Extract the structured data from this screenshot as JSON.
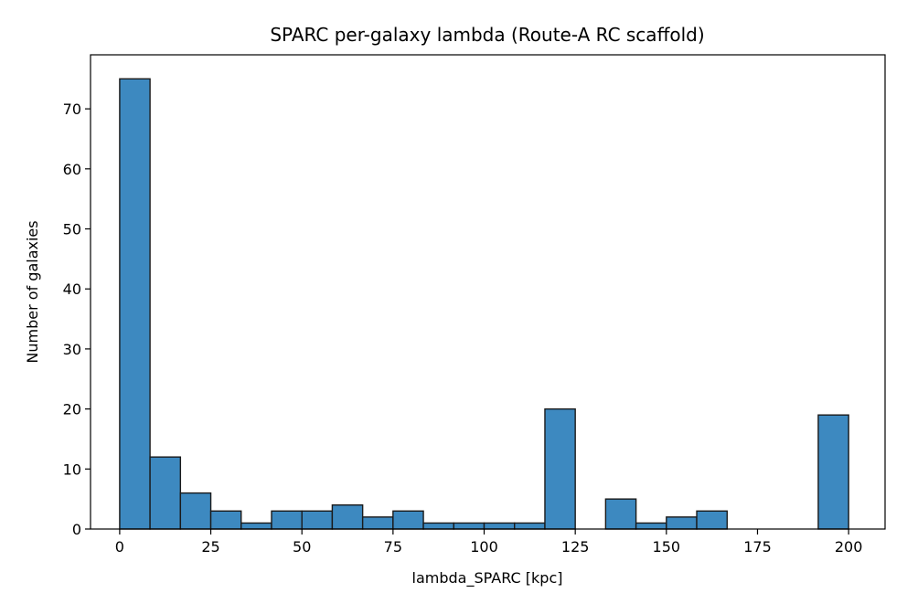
{
  "chart_data": {
    "type": "bar",
    "title": "SPARC per-galaxy lambda (Route-A RC scaffold)",
    "xlabel": "lambda_SPARC [kpc]",
    "ylabel": "Number of galaxies",
    "bar_color": "#3d89c0",
    "edge_color": "#1a1a1a",
    "xlim": [
      -8,
      210
    ],
    "ylim": [
      0,
      79
    ],
    "x_ticks": [
      0,
      25,
      50,
      75,
      100,
      125,
      150,
      175,
      200
    ],
    "y_ticks": [
      0,
      10,
      20,
      30,
      40,
      50,
      60,
      70
    ],
    "bin_edges": [
      0,
      8.33,
      16.67,
      25,
      33.33,
      41.67,
      50,
      58.33,
      66.67,
      75,
      83.33,
      91.67,
      100,
      108.33,
      116.67,
      125,
      133.33,
      141.67,
      150,
      158.33,
      166.67,
      175,
      183.33,
      191.67,
      200
    ],
    "counts": [
      75,
      12,
      6,
      3,
      1,
      3,
      3,
      4,
      2,
      3,
      1,
      1,
      1,
      1,
      20,
      0,
      5,
      1,
      2,
      3,
      0,
      0,
      0,
      19
    ],
    "grid": false
  }
}
